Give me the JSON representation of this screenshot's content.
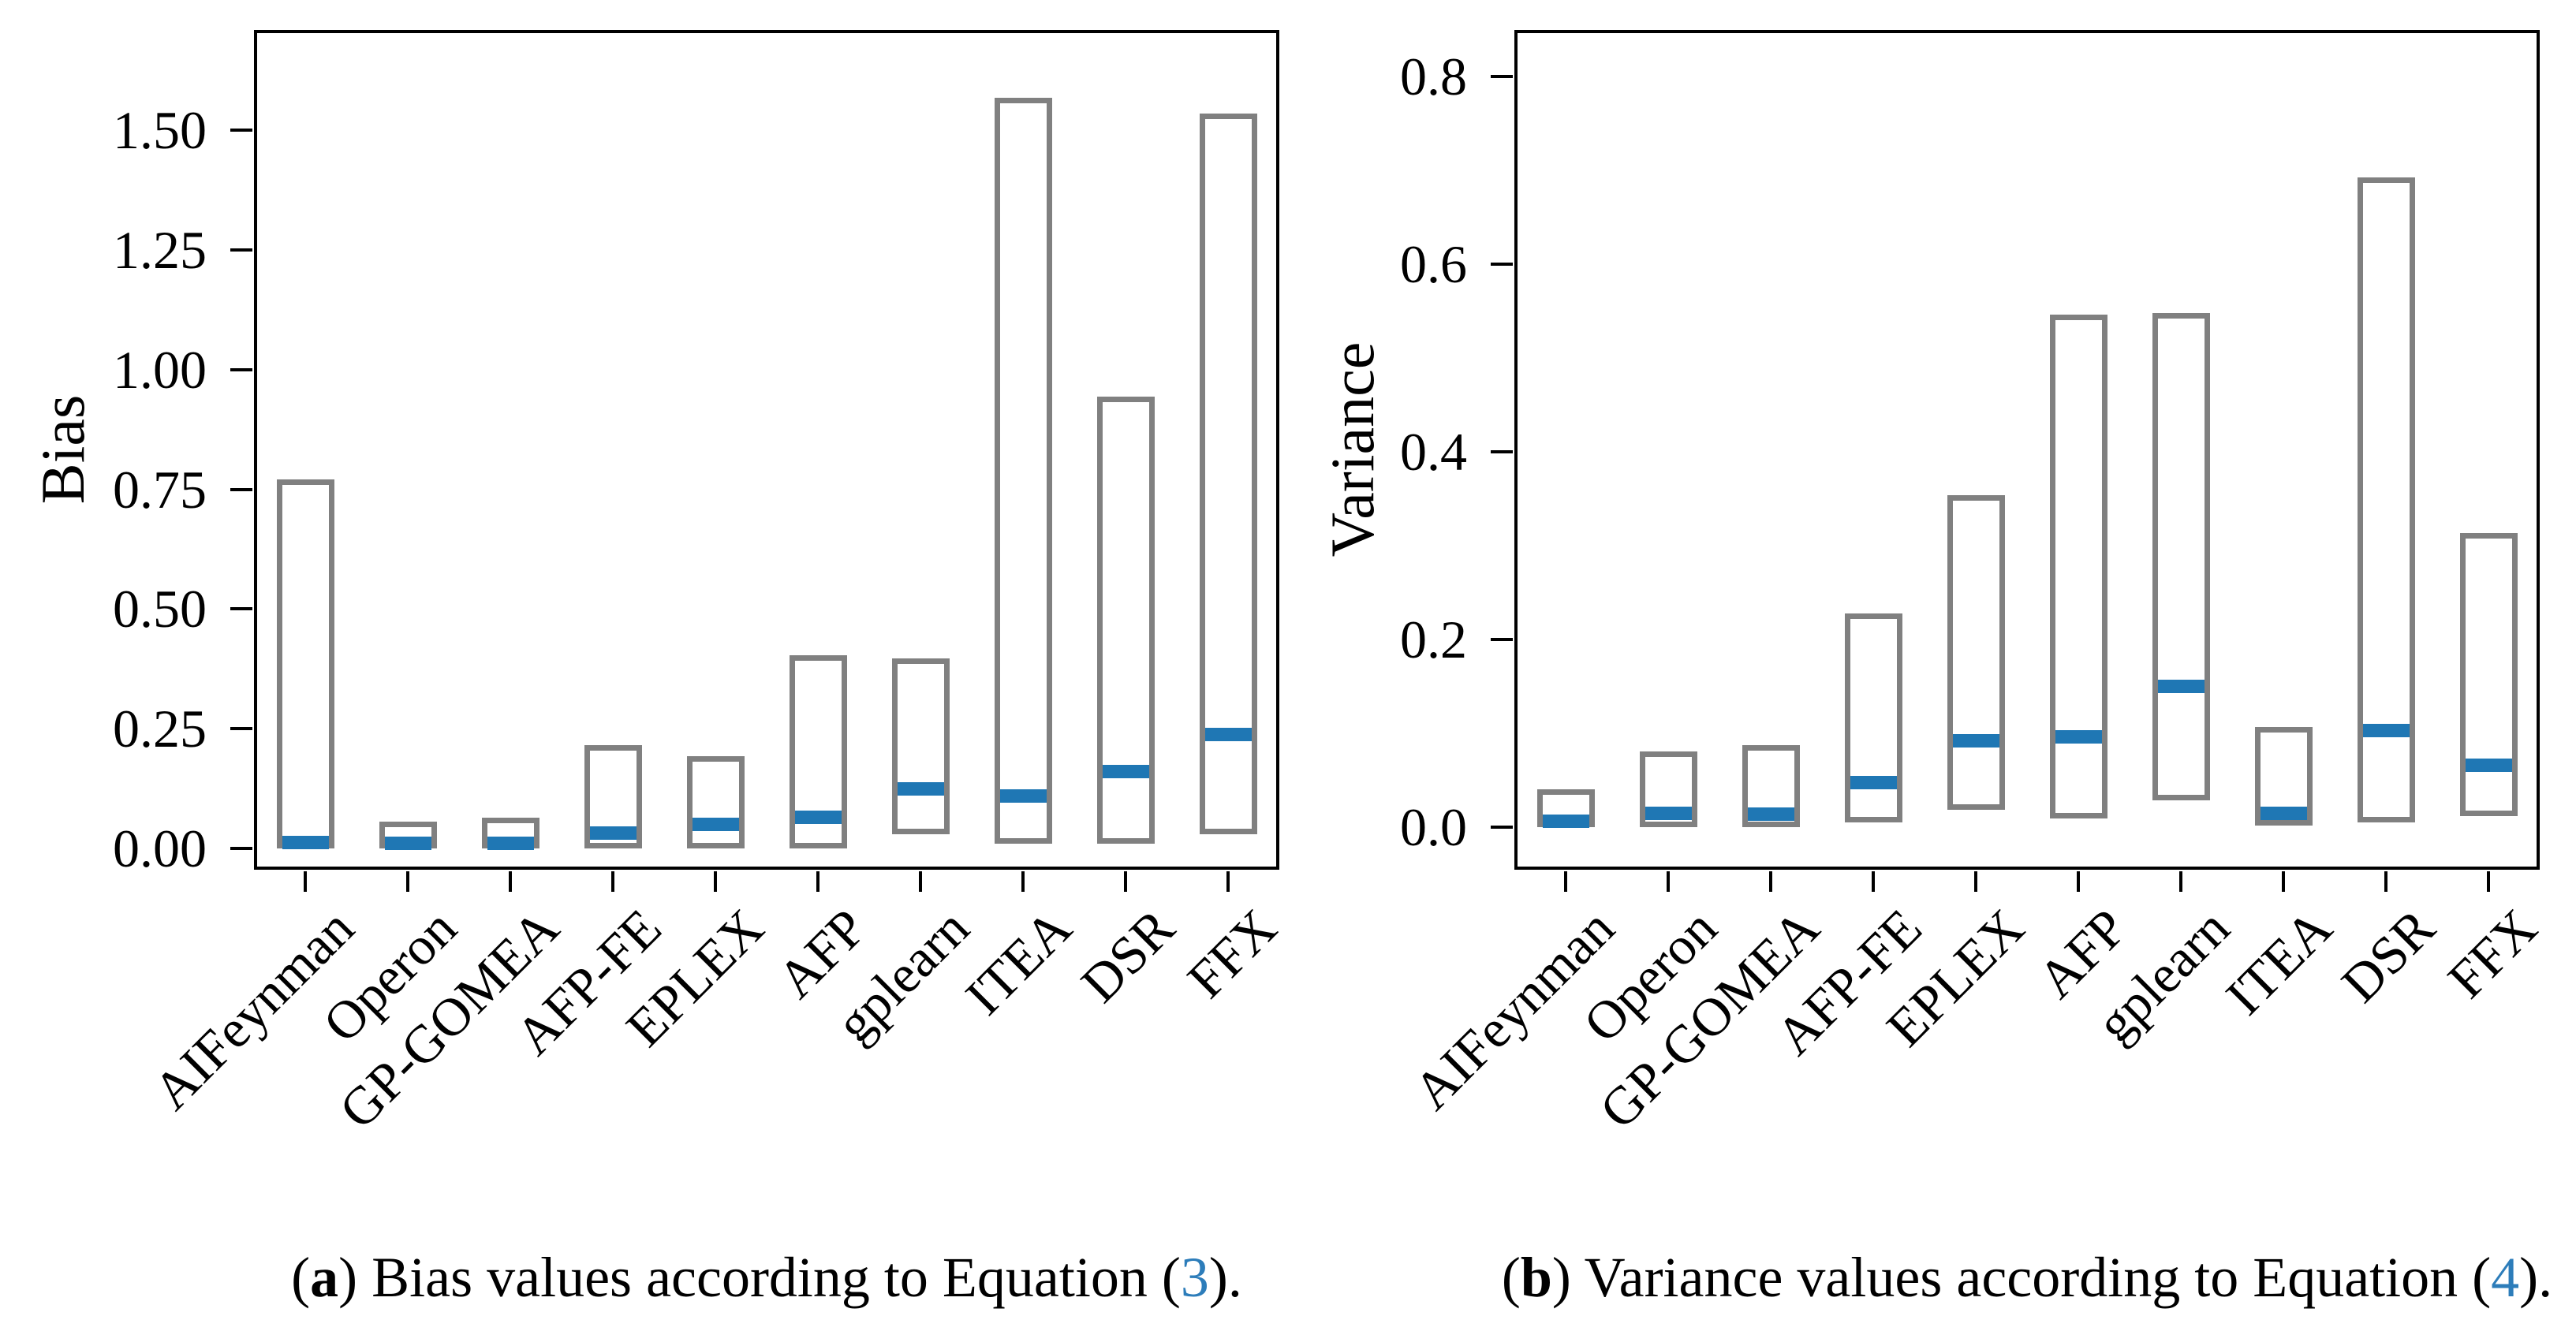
{
  "figure": {
    "background": "#ffffff",
    "panels": [
      "a",
      "b"
    ]
  },
  "chart_data": [
    {
      "type": "bar",
      "variant": "range-box-with-median-line",
      "panel": "a",
      "title": "",
      "xlabel": "",
      "ylabel": "Bias",
      "grid": false,
      "legend": "none",
      "categories": [
        "AIFeynman",
        "Operon",
        "GP-GOMEA",
        "AFP-FE",
        "EPLEX",
        "AFP",
        "gplearn",
        "ITEA",
        "DSR",
        "FFX"
      ],
      "series": [
        {
          "name": "range_min",
          "values": [
            0.0,
            0.0,
            0.0,
            0.0,
            0.0,
            0.0,
            0.029,
            0.009,
            0.009,
            0.029
          ]
        },
        {
          "name": "range_max",
          "values": [
            0.77,
            0.055,
            0.063,
            0.215,
            0.193,
            0.404,
            0.396,
            1.569,
            0.943,
            1.536
          ]
        },
        {
          "name": "median",
          "values": [
            0.012,
            0.01,
            0.01,
            0.031,
            0.05,
            0.064,
            0.124,
            0.109,
            0.16,
            0.238
          ]
        }
      ],
      "ylim": [
        -0.045,
        1.71
      ],
      "yticks": [
        0.0,
        0.25,
        0.5,
        0.75,
        1.0,
        1.25,
        1.5
      ],
      "ytick_labels": [
        "0.00",
        "0.25",
        "0.50",
        "0.75",
        "1.00",
        "1.25",
        "1.50"
      ],
      "colors": {
        "box_outline": "#808080",
        "median": "#1f77b4",
        "axis": "#000000",
        "link": "#2d7dba"
      },
      "caption": {
        "open": "(",
        "index": "a",
        "close": ") ",
        "text": "Bias values according to Equation (",
        "eq": "3",
        "end": ")."
      }
    },
    {
      "type": "bar",
      "variant": "range-box-with-median-line",
      "panel": "b",
      "title": "",
      "xlabel": "",
      "ylabel": "Variance",
      "grid": false,
      "legend": "none",
      "categories": [
        "AIFeynman",
        "Operon",
        "GP-GOMEA",
        "AFP-FE",
        "EPLEX",
        "AFP",
        "gplearn",
        "ITEA",
        "DSR",
        "FFX"
      ],
      "series": [
        {
          "name": "range_min",
          "values": [
            0.0,
            0.0,
            0.0,
            0.005,
            0.019,
            0.01,
            0.029,
            0.002,
            0.005,
            0.012
          ]
        },
        {
          "name": "range_max",
          "values": [
            0.041,
            0.081,
            0.088,
            0.228,
            0.354,
            0.547,
            0.548,
            0.107,
            0.693,
            0.314
          ]
        },
        {
          "name": "median",
          "values": [
            0.007,
            0.015,
            0.014,
            0.048,
            0.092,
            0.097,
            0.15,
            0.015,
            0.103,
            0.066
          ]
        }
      ],
      "ylim": [
        -0.045,
        0.85
      ],
      "yticks": [
        0.0,
        0.2,
        0.4,
        0.6,
        0.8
      ],
      "ytick_labels": [
        "0.0",
        "0.2",
        "0.4",
        "0.6",
        "0.8"
      ],
      "colors": {
        "box_outline": "#808080",
        "median": "#1f77b4",
        "axis": "#000000",
        "link": "#2d7dba"
      },
      "caption": {
        "open": "(",
        "index": "b",
        "close": ") ",
        "text": "Variance values according to Equation (",
        "eq": "4",
        "end": ")."
      }
    }
  ]
}
